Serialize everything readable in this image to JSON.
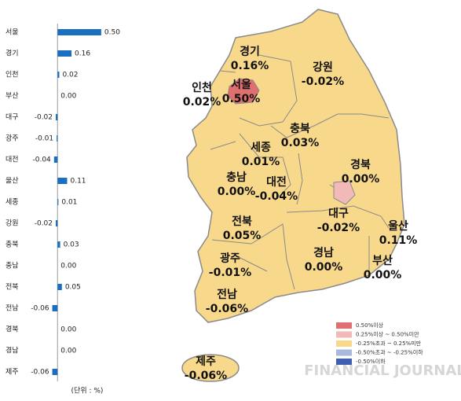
{
  "chart_data": {
    "type": "hbar",
    "categories": [
      "서울",
      "경기",
      "인천",
      "부산",
      "대구",
      "광주",
      "대전",
      "울산",
      "세종",
      "강원",
      "충북",
      "충남",
      "전북",
      "전남",
      "경북",
      "경남",
      "제주"
    ],
    "values": [
      0.5,
      0.16,
      0.02,
      0,
      -0.02,
      -0.01,
      -0.04,
      0.11,
      0.01,
      -0.02,
      0.03,
      0,
      0.05,
      -0.06,
      0,
      0,
      -0.06
    ],
    "value_labels": [
      "0.50",
      "0.16",
      "0.02",
      "0.00",
      "-0.02",
      "-0.01",
      "-0.04",
      "0.11",
      "0.01",
      "-0.02",
      "0.03",
      "0.00",
      "0.05",
      "-0.06",
      "0.00",
      "0.00",
      "-0.06"
    ],
    "color": "#1a6fc0",
    "xlim": [
      -0.2,
      0.6
    ],
    "unit_note": "(단위 : %)"
  },
  "map": {
    "regions": [
      {
        "name": "경기",
        "label": "0.16%"
      },
      {
        "name": "강원",
        "label": "-0.02%"
      },
      {
        "name": "인천",
        "label": "0.02%"
      },
      {
        "name": "서울",
        "label": "0.50%"
      },
      {
        "name": "충북",
        "label": "0.03%"
      },
      {
        "name": "세종",
        "label": "0.01%"
      },
      {
        "name": "충남",
        "label": "0.00%"
      },
      {
        "name": "대전",
        "label": "-0.04%"
      },
      {
        "name": "경북",
        "label": "0.00%"
      },
      {
        "name": "전북",
        "label": "0.05%"
      },
      {
        "name": "대구",
        "label": "-0.02%"
      },
      {
        "name": "울산",
        "label": "0.11%"
      },
      {
        "name": "광주",
        "label": "-0.01%"
      },
      {
        "name": "경남",
        "label": "0.00%"
      },
      {
        "name": "부산",
        "label": "0.00%"
      },
      {
        "name": "전남",
        "label": "-0.06%"
      },
      {
        "name": "제주",
        "label": "-0.06%"
      }
    ],
    "legend": [
      {
        "label": "0.50%이상",
        "color": "#e07070"
      },
      {
        "label": "0.25%이상 ~ 0.50%미만",
        "color": "#f2b9b9"
      },
      {
        "label": "-0.25%초과 ~ 0.25%미만",
        "color": "#f8d98c"
      },
      {
        "label": "-0.50%초과 ~ -0.25%이하",
        "color": "#a9b8dd"
      },
      {
        "label": "-0.50%이하",
        "color": "#3f5fb0"
      }
    ],
    "watermark": "FINANCIAL JOURNAL"
  }
}
